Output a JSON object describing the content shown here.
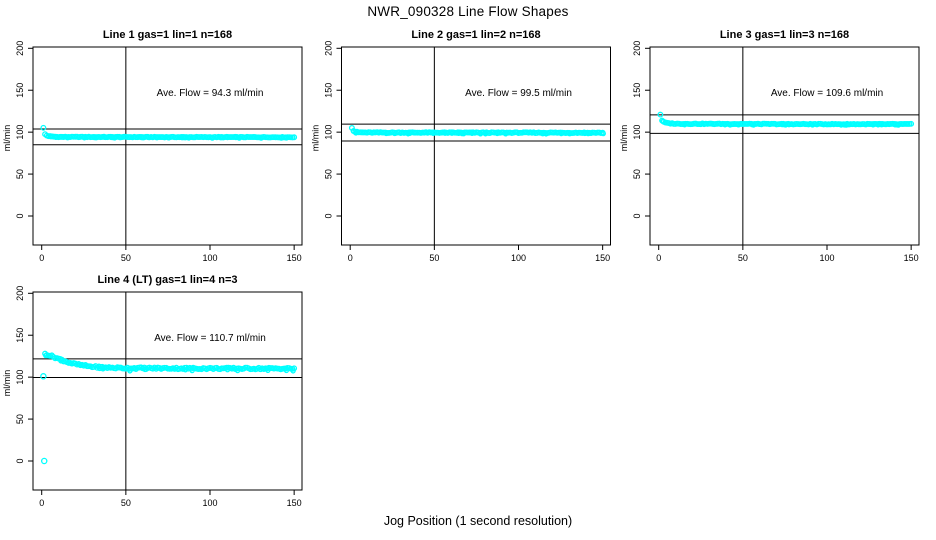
{
  "page_title": "NWR_090328  Line Flow Shapes",
  "x_axis_label": "Jog Position (1 second resolution)",
  "point_color": "#00FFFF",
  "line_color": "#000000",
  "chart_data": {
    "type": "scatter",
    "title": "NWR_090328  Line Flow Shapes",
    "xlabel": "Jog Position (1 second resolution)",
    "ylabel": "ml/min",
    "x_ticks": [
      0,
      50,
      100,
      150
    ],
    "y_ticks": [
      0,
      50,
      100,
      150,
      200
    ],
    "xlim": [
      0,
      150
    ],
    "ylim": [
      -36,
      201
    ],
    "grid": false,
    "legend": "none",
    "marker": "open-circle",
    "panels": [
      {
        "title": "Line 1 gas=1 lin=1 n=168",
        "annotation": "Ave. Flow =  94.3  ml/min",
        "ave_flow": 94.3,
        "n": 168,
        "upper_ref_line": 103.7,
        "lower_ref_line": 84.9,
        "vline_x": 50,
        "keypoints": [
          [
            1,
            105
          ],
          [
            2,
            97.5
          ],
          [
            3,
            96
          ],
          [
            4,
            95.3
          ],
          [
            6,
            94.8
          ],
          [
            10,
            94.3
          ],
          [
            80,
            94.1
          ],
          [
            150,
            94.0
          ]
        ],
        "extra_points": [],
        "noise": 0.5
      },
      {
        "title": "Line 2 gas=1 lin=2 n=168",
        "annotation": "Ave. Flow =  99.5  ml/min",
        "ave_flow": 99.5,
        "n": 168,
        "upper_ref_line": 109.5,
        "lower_ref_line": 89.5,
        "vline_x": 50,
        "keypoints": [
          [
            1,
            105.5
          ],
          [
            2,
            101.5
          ],
          [
            3,
            100.3
          ],
          [
            5,
            99.8
          ],
          [
            10,
            99.5
          ],
          [
            80,
            99.4
          ],
          [
            150,
            99.3
          ]
        ],
        "extra_points": [],
        "noise": 0.7
      },
      {
        "title": "Line 3 gas=1 lin=3 n=168",
        "annotation": "Ave. Flow =  109.6  ml/min",
        "ave_flow": 109.6,
        "n": 168,
        "upper_ref_line": 120.6,
        "lower_ref_line": 98.6,
        "vline_x": 50,
        "keypoints": [
          [
            1,
            121
          ],
          [
            2,
            114
          ],
          [
            3,
            112
          ],
          [
            5,
            110.8
          ],
          [
            10,
            110
          ],
          [
            80,
            109.6
          ],
          [
            150,
            109.5
          ]
        ],
        "extra_points": [],
        "noise": 0.6
      },
      {
        "title": "Line 4 (LT) gas=1 lin=4 n=3",
        "annotation": "Ave. Flow =  110.7  ml/min",
        "ave_flow": 110.7,
        "n": 3,
        "upper_ref_line": 121.8,
        "lower_ref_line": 99.6,
        "vline_x": 50,
        "keypoints": [
          [
            2,
            128
          ],
          [
            4,
            126.5
          ],
          [
            8,
            123.5
          ],
          [
            12,
            120.5
          ],
          [
            16,
            117.5
          ],
          [
            20,
            115.5
          ],
          [
            25,
            113.8
          ],
          [
            30,
            112.5
          ],
          [
            40,
            111.3
          ],
          [
            50,
            110.8
          ],
          [
            100,
            110.4
          ],
          [
            150,
            110.3
          ]
        ],
        "extra_points": [
          [
            1,
            101
          ],
          [
            1.5,
            0
          ]
        ],
        "noise": 1.5
      }
    ]
  }
}
